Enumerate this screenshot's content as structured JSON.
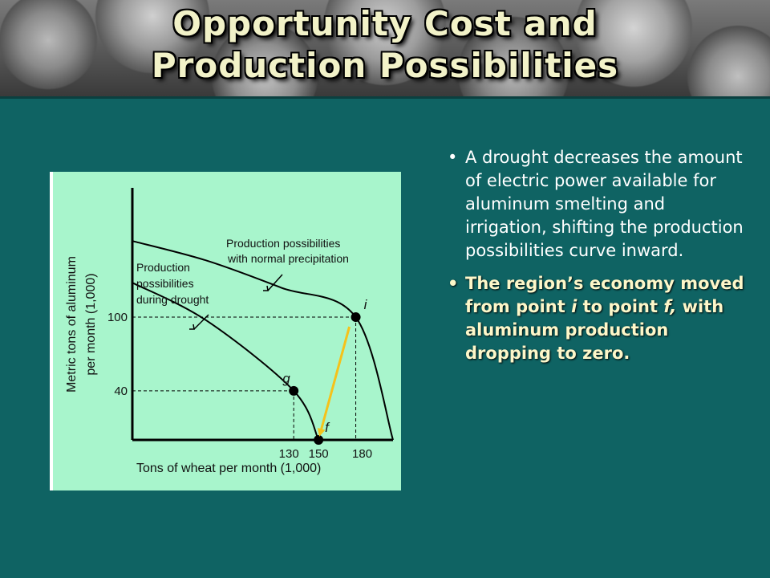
{
  "slide": {
    "title_line1": "Opportunity Cost and",
    "title_line2": "Production Possibilities",
    "bullet1": "A drought decreases the amount of electric power available for aluminum smelting and irrigation, shifting the production possibilities curve inward.",
    "bullet2": {
      "part1": "The region’s economy moved from point ",
      "point_from": "i",
      "part2": " to point ",
      "point_to": "f,",
      "part3": " with aluminum production dropping to zero."
    }
  },
  "colors": {
    "background": "#0f6363",
    "chart_background": "#a8f5cc",
    "arrow": "#f5c21b"
  },
  "chart_data": {
    "type": "line",
    "title": "",
    "xlabel": "Tons of wheat per month (1,000)",
    "ylabel_line1": "Metric tons of aluminum",
    "ylabel_line2": "per month (1,000)",
    "x_ticks": [
      "130",
      "150",
      "180"
    ],
    "y_ticks": [
      "100",
      "40"
    ],
    "xlim": [
      0,
      210
    ],
    "ylim": [
      0,
      170
    ],
    "series": [
      {
        "label_line1": "Production possibilities",
        "label_line2": "with normal precipitation",
        "x": [
          0,
          60,
          120,
          180,
          210
        ],
        "y": [
          162,
          146,
          124,
          100,
          0
        ]
      },
      {
        "label_line1": "Production",
        "label_line2": "possibilities",
        "label_line3": "during drought",
        "x": [
          0,
          60,
          130,
          150
        ],
        "y": [
          128,
          97,
          40,
          0
        ]
      }
    ],
    "points": [
      {
        "label": "i",
        "x": 180,
        "y": 100
      },
      {
        "label": "g",
        "x": 130,
        "y": 40
      },
      {
        "label": "f",
        "x": 150,
        "y": 0
      }
    ],
    "arrow": {
      "from": "i",
      "to": "f"
    }
  }
}
